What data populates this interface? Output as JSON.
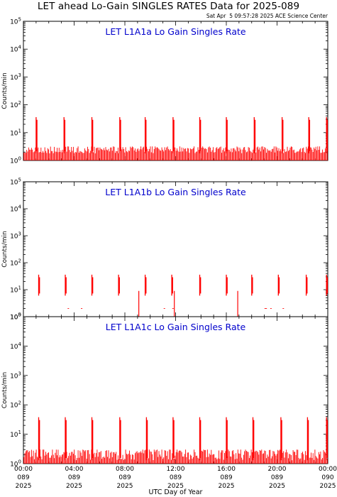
{
  "header": {
    "title": "LET ahead Lo-Gain SINGLES RATES Data for 2025-089",
    "timestamp": "Sat Apr  5 09:57:28 2025 ACE Science Center"
  },
  "colors": {
    "data": "#ff0000",
    "panel_title": "#0000cc",
    "axes": "#000000"
  },
  "chart_data": [
    {
      "type": "line",
      "title": "LET L1A1a Lo Gain Singles Rate",
      "ylabel": "Counts/min",
      "yscale": "log",
      "ylim": [
        1,
        100000
      ],
      "ytick_labels": [
        "10^0",
        "10^1",
        "10^2",
        "10^3",
        "10^4",
        "10^5"
      ],
      "xlim_hours": [
        0,
        24
      ],
      "baseline": 1.8,
      "noise_max": 3.2,
      "spike_hours": [
        1.0,
        3.2,
        5.4,
        7.6,
        9.6,
        11.8,
        13.9,
        16.0,
        18.2,
        20.4,
        22.5,
        23.9
      ],
      "spike_peak": 36
    },
    {
      "type": "line",
      "title": "LET L1A1b Lo Gain Singles Rate",
      "ylabel": "Counts/min",
      "yscale": "log",
      "ylim": [
        1,
        100000
      ],
      "ytick_labels": [
        "10^0",
        "10^1",
        "10^2",
        "10^3",
        "10^4",
        "10^5"
      ],
      "xlim_hours": [
        0,
        24
      ],
      "baseline": 1.05,
      "noise_max": 1.1,
      "spike_hours": [
        1.2,
        3.3,
        5.4,
        7.5,
        9.6,
        11.7,
        13.9,
        16.0,
        18.0,
        20.1,
        22.3,
        23.9
      ],
      "spike_peak": 36,
      "dropouts_hours": [
        9.1,
        11.9,
        16.9
      ]
    },
    {
      "type": "line",
      "title": "LET L1A1c Lo Gain Singles Rate",
      "ylabel": "Counts/min",
      "yscale": "log",
      "ylim": [
        1,
        100000
      ],
      "ytick_labels": [
        "10^0",
        "10^1",
        "10^2",
        "10^3",
        "10^4",
        "10^5"
      ],
      "xlim_hours": [
        0,
        24
      ],
      "baseline": 1.3,
      "noise_max": 3.0,
      "spike_hours": [
        1.2,
        3.3,
        5.4,
        7.6,
        9.7,
        11.8,
        13.9,
        16.0,
        18.1,
        20.3,
        22.4,
        23.9
      ],
      "spike_peak": 38
    }
  ],
  "x_axis": {
    "title": "UTC Day of Year",
    "ticks": [
      {
        "hour": 0,
        "time": "00:00",
        "doy": "089",
        "year": "2025"
      },
      {
        "hour": 4,
        "time": "04:00",
        "doy": "089",
        "year": "2025"
      },
      {
        "hour": 8,
        "time": "08:00",
        "doy": "089",
        "year": "2025"
      },
      {
        "hour": 12,
        "time": "12:00",
        "doy": "089",
        "year": "2025"
      },
      {
        "hour": 16,
        "time": "16:00",
        "doy": "089",
        "year": "2025"
      },
      {
        "hour": 20,
        "time": "20:00",
        "doy": "089",
        "year": "2025"
      },
      {
        "hour": 24,
        "time": "00:00",
        "doy": "090",
        "year": "2025"
      }
    ]
  }
}
